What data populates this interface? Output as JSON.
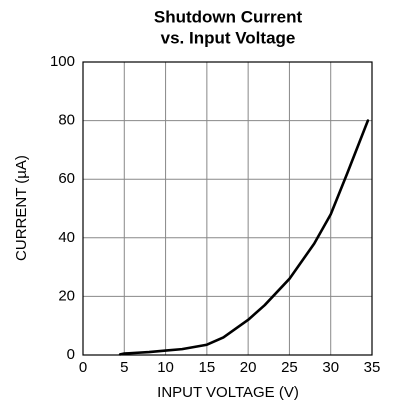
{
  "chart_data": {
    "type": "line",
    "title": [
      "Shutdown Current",
      "vs. Input Voltage"
    ],
    "x_label": "INPUT VOLTAGE (V)",
    "y_label": "CURRENT (µA)",
    "series": [
      {
        "name": "Shutdown Current",
        "color": "#000000",
        "x": [
          4.5,
          5,
          8,
          10,
          12,
          15,
          17,
          20,
          22,
          25,
          28,
          30,
          32,
          34.5
        ],
        "values": [
          0.2,
          0.5,
          1,
          1.5,
          2,
          3.5,
          6,
          12,
          17,
          26,
          38,
          48,
          62,
          80
        ]
      }
    ],
    "xlim": [
      0,
      35
    ],
    "xticks": [
      0,
      5,
      10,
      15,
      20,
      25,
      30,
      35
    ],
    "ylim": [
      0,
      100
    ],
    "yticks": [
      0,
      20,
      40,
      60,
      80,
      100
    ],
    "grid": true
  }
}
